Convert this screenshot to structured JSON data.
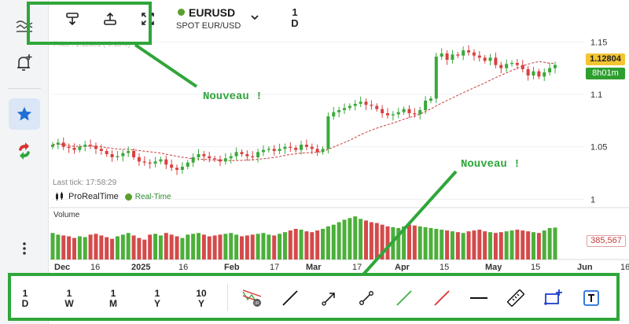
{
  "toolbar": {
    "symbol": "EURUSD",
    "market": "SPOT EUR/USD",
    "timeframe_top": "1",
    "timeframe_bottom": "D",
    "faint_price": "Price : 1.12801 (-0.13%)"
  },
  "price_axis": {
    "labels": [
      "1.15",
      "1.1",
      "1.05",
      "1"
    ]
  },
  "time_axis": {
    "labels": [
      "Dec",
      "16",
      "2025",
      "16",
      "Feb",
      "17",
      "Mar",
      "17",
      "Apr",
      "15",
      "May",
      "15",
      "Jun",
      "16"
    ]
  },
  "chart_info": {
    "last_tick": "Last tick: 17:58:29",
    "source": "ProRealTime",
    "realtime": "Real-Time",
    "volume_title": "Volume",
    "current_price": "1.12804",
    "time_to_close": "8h01m",
    "current_volume": "385,567"
  },
  "annotations": {
    "top_label": "Nouveau !",
    "bottom_label": "Nouveau !",
    "box_color": "#2fa63a"
  },
  "bottom_toolbar": {
    "timeframes": [
      {
        "top": "1",
        "bottom": "D"
      },
      {
        "top": "1",
        "bottom": "W"
      },
      {
        "top": "1",
        "bottom": "M"
      },
      {
        "top": "1",
        "bottom": "Y"
      },
      {
        "top": "10",
        "bottom": "Y"
      }
    ],
    "tools": [
      "auto-trend-icon",
      "line-icon",
      "arrow-line-icon",
      "segment-icon",
      "green-line-icon",
      "red-line-icon",
      "horizontal-line-icon",
      "ruler-icon",
      "add-rectangle-icon",
      "text-icon"
    ]
  },
  "sidebar": {
    "icons": [
      "scale-icon",
      "alert-bell-icon",
      "favorites-star-icon",
      "refresh-arrows-icon",
      "more-dots-icon"
    ]
  },
  "chart_data": {
    "type": "candlestick",
    "symbol": "EURUSD",
    "timeframe": "1D",
    "ylim": [
      0.995,
      1.16
    ],
    "y_ticks": [
      1.0,
      1.05,
      1.1,
      1.15
    ],
    "close_series_sample": [
      1.052,
      1.054,
      1.05,
      1.049,
      1.047,
      1.05,
      1.052,
      1.051,
      1.048,
      1.046,
      1.043,
      1.04,
      1.041,
      1.044,
      1.046,
      1.04,
      1.036,
      1.035,
      1.034,
      1.036,
      1.038,
      1.033,
      1.03,
      1.028,
      1.031,
      1.035,
      1.04,
      1.043,
      1.041,
      1.039,
      1.038,
      1.036,
      1.039,
      1.041,
      1.045,
      1.043,
      1.041,
      1.04,
      1.045,
      1.047,
      1.048,
      1.046,
      1.048,
      1.05,
      1.049,
      1.047,
      1.052,
      1.05,
      1.048,
      1.045,
      1.048,
      1.079,
      1.083,
      1.085,
      1.087,
      1.089,
      1.091,
      1.093,
      1.09,
      1.089,
      1.086,
      1.082,
      1.08,
      1.081,
      1.083,
      1.086,
      1.082,
      1.081,
      1.085,
      1.094,
      1.096,
      1.136,
      1.139,
      1.133,
      1.138,
      1.137,
      1.142,
      1.14,
      1.137,
      1.135,
      1.132,
      1.135,
      1.128,
      1.125,
      1.129,
      1.13,
      1.128,
      1.124,
      1.118,
      1.122,
      1.117,
      1.121,
      1.125,
      1.128
    ],
    "volume_sample_k": [
      320,
      300,
      290,
      280,
      260,
      280,
      270,
      300,
      310,
      290,
      270,
      250,
      280,
      300,
      320,
      290,
      260,
      240,
      300,
      310,
      290,
      320,
      300,
      280,
      260,
      300,
      310,
      320,
      300,
      280,
      290,
      300,
      310,
      320,
      300,
      280,
      290,
      300,
      310,
      320,
      300,
      290,
      310,
      330,
      350,
      370,
      360,
      340,
      330,
      350,
      370,
      400,
      420,
      450,
      480,
      500,
      520,
      490,
      470,
      450,
      440,
      420,
      400,
      390,
      380,
      400,
      420,
      410,
      400,
      390,
      380,
      370,
      360,
      350,
      340,
      330,
      320,
      340,
      350,
      360,
      340,
      330,
      320,
      330,
      340,
      350,
      360,
      350,
      340,
      330,
      320,
      350,
      380,
      385
    ],
    "volume_current": 385567
  }
}
